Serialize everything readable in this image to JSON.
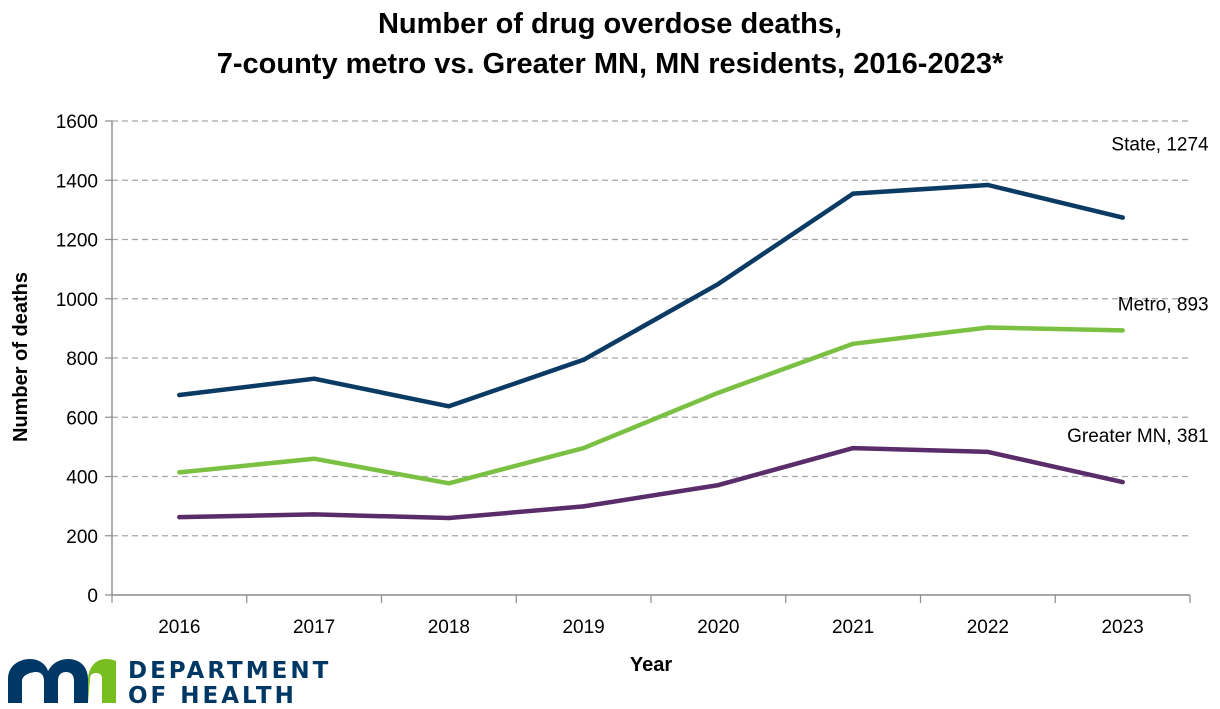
{
  "chart_data": {
    "type": "line",
    "title_lines": [
      "Number of drug overdose deaths,",
      "7-county metro vs. Greater MN, MN residents, 2016-2023*"
    ],
    "xlabel": "Year",
    "ylabel": "Number of deaths",
    "ylim": [
      0,
      1600
    ],
    "yticks": [
      0,
      200,
      400,
      600,
      800,
      1000,
      1200,
      1400,
      1600
    ],
    "categories": [
      "2016",
      "2017",
      "2018",
      "2019",
      "2020",
      "2021",
      "2022",
      "2023"
    ],
    "grid": "horizontal dashed",
    "series": [
      {
        "name": "State",
        "end_label": "State, 1274",
        "color": "#0b3a64",
        "values": [
          675,
          730,
          637,
          794,
          1050,
          1355,
          1384,
          1274
        ]
      },
      {
        "name": "Metro",
        "end_label": "Metro, 893",
        "color": "#7ac143",
        "values": [
          414,
          460,
          377,
          496,
          683,
          848,
          903,
          893
        ]
      },
      {
        "name": "Greater MN",
        "end_label": "Greater MN, 381",
        "color": "#5a2c6a",
        "values": [
          263,
          272,
          260,
          299,
          371,
          496,
          483,
          381
        ]
      }
    ]
  },
  "logo": {
    "line1": "DEPARTMENT",
    "line2": "OF HEALTH",
    "color": "#003865",
    "mark_color": "#003865",
    "accent_color": "#78be21"
  }
}
